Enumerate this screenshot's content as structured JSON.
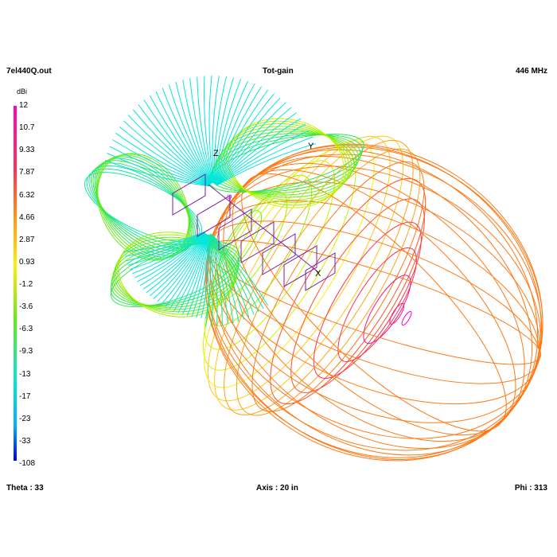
{
  "header": {
    "file": "7el440Q.out",
    "quantity": "Tot-gain",
    "frequency": "446 MHz"
  },
  "footer": {
    "theta": "Theta : 33",
    "axis": "Axis : 20 in",
    "phi": "Phi : 313"
  },
  "scale": {
    "unit": "dBi",
    "ticks": [
      "12",
      "10.7",
      "9.33",
      "7.87",
      "6.32",
      "4.66",
      "2.87",
      "0.93",
      "-1.2",
      "-3.6",
      "-6.3",
      "-9.3",
      "-13",
      "-17",
      "-23",
      "-33",
      "-108"
    ],
    "colors": [
      "#ff00c8",
      "#ff1480",
      "#ff3250",
      "#ff5028",
      "#ff7814",
      "#ffa014",
      "#ffc814",
      "#ffee00",
      "#d2f000",
      "#a0f000",
      "#64ec14",
      "#32e650",
      "#14e6a0",
      "#00e6dc",
      "#00b4f0",
      "#0064f0",
      "#0000f0"
    ]
  },
  "axes": {
    "x": "X",
    "y": "Y",
    "z": "Z",
    "phi_marker": "φ"
  }
}
